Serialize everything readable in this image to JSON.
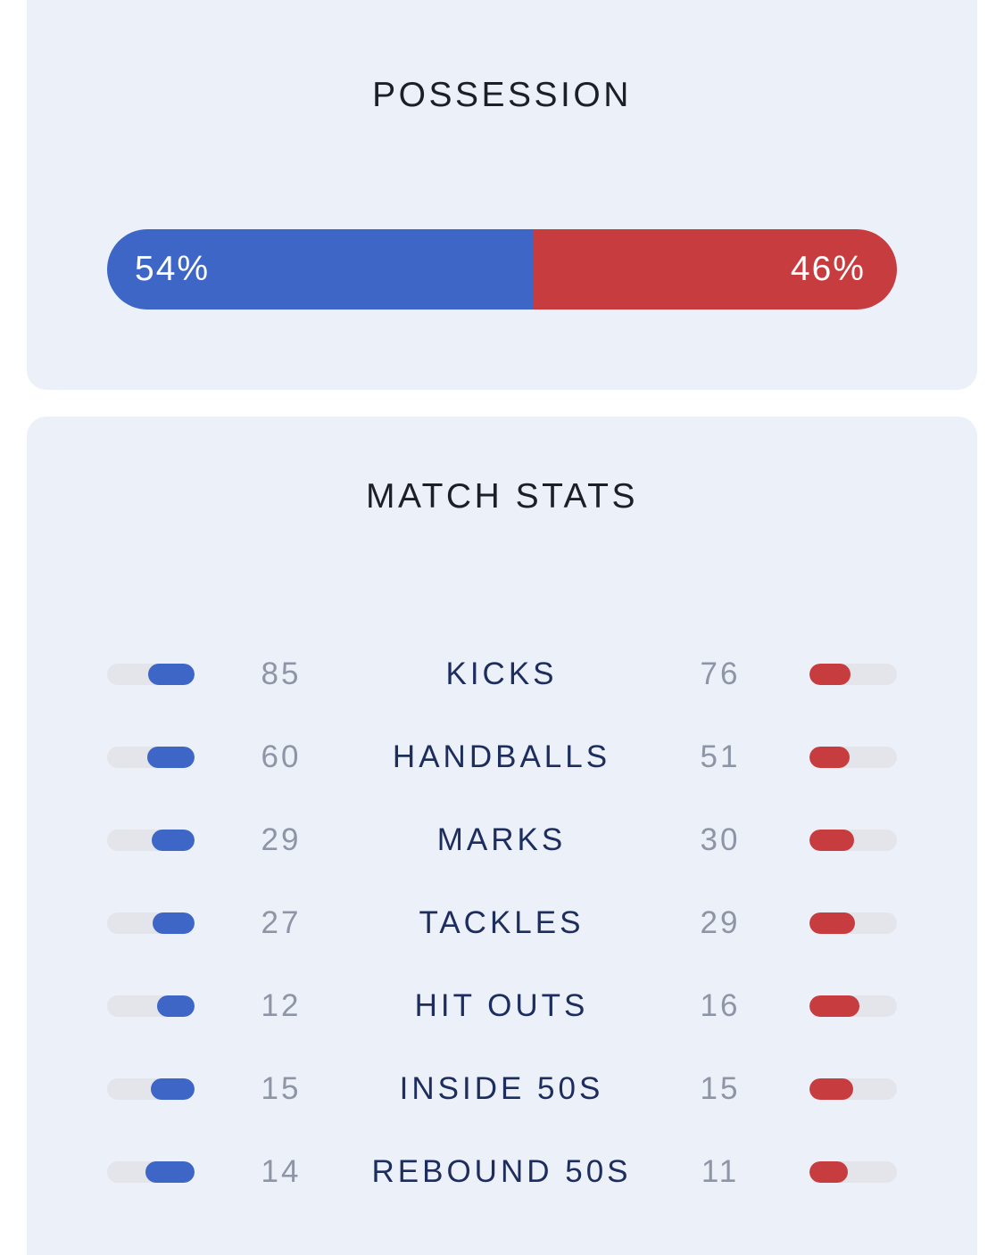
{
  "colors": {
    "card_background": "#ECF0F8",
    "home": "#3D66C7",
    "away": "#C73D3F",
    "track": "#E3E5EA",
    "stat_label": "#1C2D5E",
    "stat_number": "#8E95A6"
  },
  "possession": {
    "title": "POSSESSION",
    "home_pct": 54,
    "away_pct": 46,
    "home_label": "54%",
    "away_label": "46%"
  },
  "match_stats": {
    "title": "MATCH STATS",
    "rows": [
      {
        "label": "KICKS",
        "home": "85",
        "away": "76",
        "home_value": 85,
        "away_value": 76
      },
      {
        "label": "HANDBALLS",
        "home": "60",
        "away": "51",
        "home_value": 60,
        "away_value": 51
      },
      {
        "label": "MARKS",
        "home": "29",
        "away": "30",
        "home_value": 29,
        "away_value": 30
      },
      {
        "label": "TACKLES",
        "home": "27",
        "away": "29",
        "home_value": 27,
        "away_value": 29
      },
      {
        "label": "HIT OUTS",
        "home": "12",
        "away": "16",
        "home_value": 12,
        "away_value": 16
      },
      {
        "label": "INSIDE 50S",
        "home": "15",
        "away": "15",
        "home_value": 15,
        "away_value": 15
      },
      {
        "label": "REBOUND 50S",
        "home": "14",
        "away": "11",
        "home_value": 14,
        "away_value": 11
      }
    ]
  }
}
